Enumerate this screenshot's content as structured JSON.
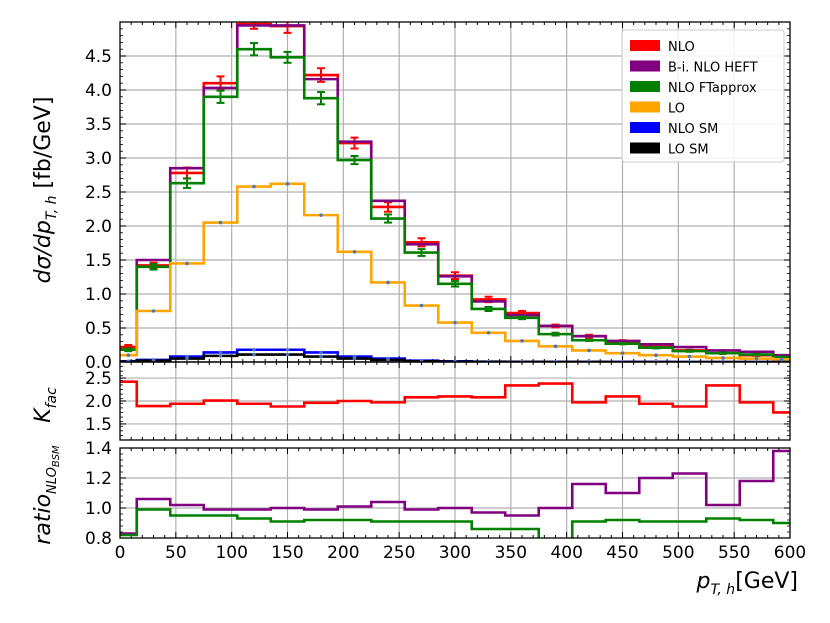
{
  "chart_data": [
    {
      "type": "line",
      "panel": "main",
      "ylabel_parts": [
        "dσ/dp",
        "T, h",
        " [fb/GeV]"
      ],
      "xlim": [
        0,
        600
      ],
      "ylim": [
        0,
        5.0
      ],
      "yticks": [
        "0.0",
        "0.5",
        "1.0",
        "1.5",
        "2.0",
        "2.5",
        "3.0",
        "3.5",
        "4.0",
        "4.5"
      ],
      "grid": true,
      "legend_placement": "top-right",
      "bin_edges": [
        0,
        15,
        45,
        75,
        105,
        135,
        165,
        195,
        225,
        255,
        285,
        315,
        345,
        375,
        405,
        435,
        465,
        495,
        525,
        555,
        585,
        600
      ],
      "series": [
        {
          "name": "NLO",
          "color": "#ff0000",
          "values": [
            0.22,
            1.42,
            2.78,
            4.1,
            4.97,
            4.94,
            4.22,
            3.22,
            2.28,
            1.76,
            1.27,
            0.92,
            0.72,
            0.53,
            0.38,
            0.3,
            0.23,
            0.17,
            0.13,
            0.1,
            0.07
          ],
          "err": [
            0.03,
            0.04,
            0.08,
            0.1,
            0.07,
            0.1,
            0.1,
            0.08,
            0.07,
            0.06,
            0.05,
            0.04,
            0.03,
            0.02,
            0.02,
            0.02,
            0.01,
            0.01,
            0.01,
            0.01,
            0.01
          ]
        },
        {
          "name": "B-i. NLO HEFT",
          "color": "#800080",
          "values": [
            0.18,
            1.5,
            2.85,
            4.03,
            4.95,
            4.95,
            4.16,
            3.24,
            2.37,
            1.73,
            1.26,
            0.89,
            0.69,
            0.53,
            0.38,
            0.31,
            0.26,
            0.22,
            0.17,
            0.15,
            0.1
          ]
        },
        {
          "name": "NLO FTapprox",
          "color": "#008000",
          "values": [
            0.18,
            1.4,
            2.63,
            3.9,
            4.6,
            4.48,
            3.88,
            2.97,
            2.11,
            1.61,
            1.15,
            0.78,
            0.65,
            0.41,
            0.32,
            0.27,
            0.21,
            0.16,
            0.13,
            0.11,
            0.07
          ],
          "err": [
            0.02,
            0.04,
            0.07,
            0.09,
            0.09,
            0.08,
            0.09,
            0.06,
            0.06,
            0.05,
            0.04,
            0.03,
            0.02,
            0.02,
            0.01,
            0.01,
            0.01,
            0.01,
            0.01,
            0.01,
            0.01
          ]
        },
        {
          "name": "LO",
          "color": "#ffa500",
          "values": [
            0.1,
            0.75,
            1.45,
            2.05,
            2.58,
            2.62,
            2.16,
            1.62,
            1.17,
            0.83,
            0.58,
            0.43,
            0.31,
            0.23,
            0.17,
            0.13,
            0.1,
            0.08,
            0.06,
            0.05,
            0.04
          ]
        },
        {
          "name": "NLO SM",
          "color": "#0000ff",
          "values": [
            0.01,
            0.03,
            0.08,
            0.14,
            0.18,
            0.18,
            0.14,
            0.08,
            0.05,
            0.02,
            0.01,
            0.005,
            0.003,
            0.002,
            0.001,
            0.001,
            0.001,
            0.0,
            0.0,
            0.0,
            0.0
          ]
        },
        {
          "name": "LO SM",
          "color": "#000000",
          "values": [
            0.005,
            0.02,
            0.05,
            0.09,
            0.11,
            0.11,
            0.08,
            0.05,
            0.03,
            0.01,
            0.005,
            0.003,
            0.002,
            0.001,
            0.001,
            0.0,
            0.0,
            0.0,
            0.0,
            0.0,
            0.0
          ]
        }
      ]
    },
    {
      "type": "line",
      "panel": "kfac",
      "ylabel_parts": [
        "K",
        "fac"
      ],
      "xlim": [
        0,
        600
      ],
      "ylim": [
        1.15,
        2.85
      ],
      "yticks": [
        "1.5",
        "2.0",
        "2.5"
      ],
      "grid": true,
      "bin_edges": [
        0,
        15,
        45,
        75,
        105,
        135,
        165,
        195,
        225,
        255,
        285,
        315,
        345,
        375,
        405,
        435,
        465,
        495,
        525,
        555,
        585,
        600
      ],
      "series": [
        {
          "name": "",
          "color": "#ff0000",
          "values": [
            2.42,
            1.89,
            1.94,
            2.01,
            1.94,
            1.88,
            1.96,
            2.0,
            1.97,
            2.08,
            2.1,
            2.08,
            2.34,
            2.38,
            1.97,
            2.1,
            1.94,
            1.88,
            2.34,
            1.97,
            1.75
          ]
        }
      ]
    },
    {
      "type": "line",
      "panel": "ratio",
      "ylabel_parts": [
        "ratio",
        "NLO",
        "BSM"
      ],
      "xlabel_parts": [
        "p",
        "T, h",
        "[GeV]"
      ],
      "xlim": [
        0,
        600
      ],
      "ylim": [
        0.8,
        1.4
      ],
      "yticks": [
        "0.8",
        "1.0",
        "1.2",
        "1.4"
      ],
      "xticks": [
        "0",
        "50",
        "100",
        "150",
        "200",
        "250",
        "300",
        "350",
        "400",
        "450",
        "500",
        "550",
        "600"
      ],
      "grid": true,
      "bin_edges": [
        0,
        15,
        45,
        75,
        105,
        135,
        165,
        195,
        225,
        255,
        285,
        315,
        345,
        375,
        405,
        435,
        465,
        495,
        525,
        555,
        585,
        600
      ],
      "series": [
        {
          "name": "",
          "color": "#800080",
          "values": [
            0.83,
            1.06,
            1.02,
            0.99,
            0.99,
            1.0,
            0.99,
            1.01,
            1.04,
            0.99,
            1.0,
            0.97,
            0.95,
            1.0,
            1.16,
            1.1,
            1.2,
            1.23,
            1.02,
            1.18,
            1.38
          ]
        },
        {
          "name": "",
          "color": "#008000",
          "values": [
            0.82,
            0.99,
            0.95,
            0.95,
            0.93,
            0.91,
            0.92,
            0.92,
            0.91,
            0.91,
            0.91,
            0.86,
            0.86,
            0.77,
            0.91,
            0.92,
            0.91,
            0.91,
            0.93,
            0.92,
            0.9
          ]
        }
      ]
    }
  ]
}
